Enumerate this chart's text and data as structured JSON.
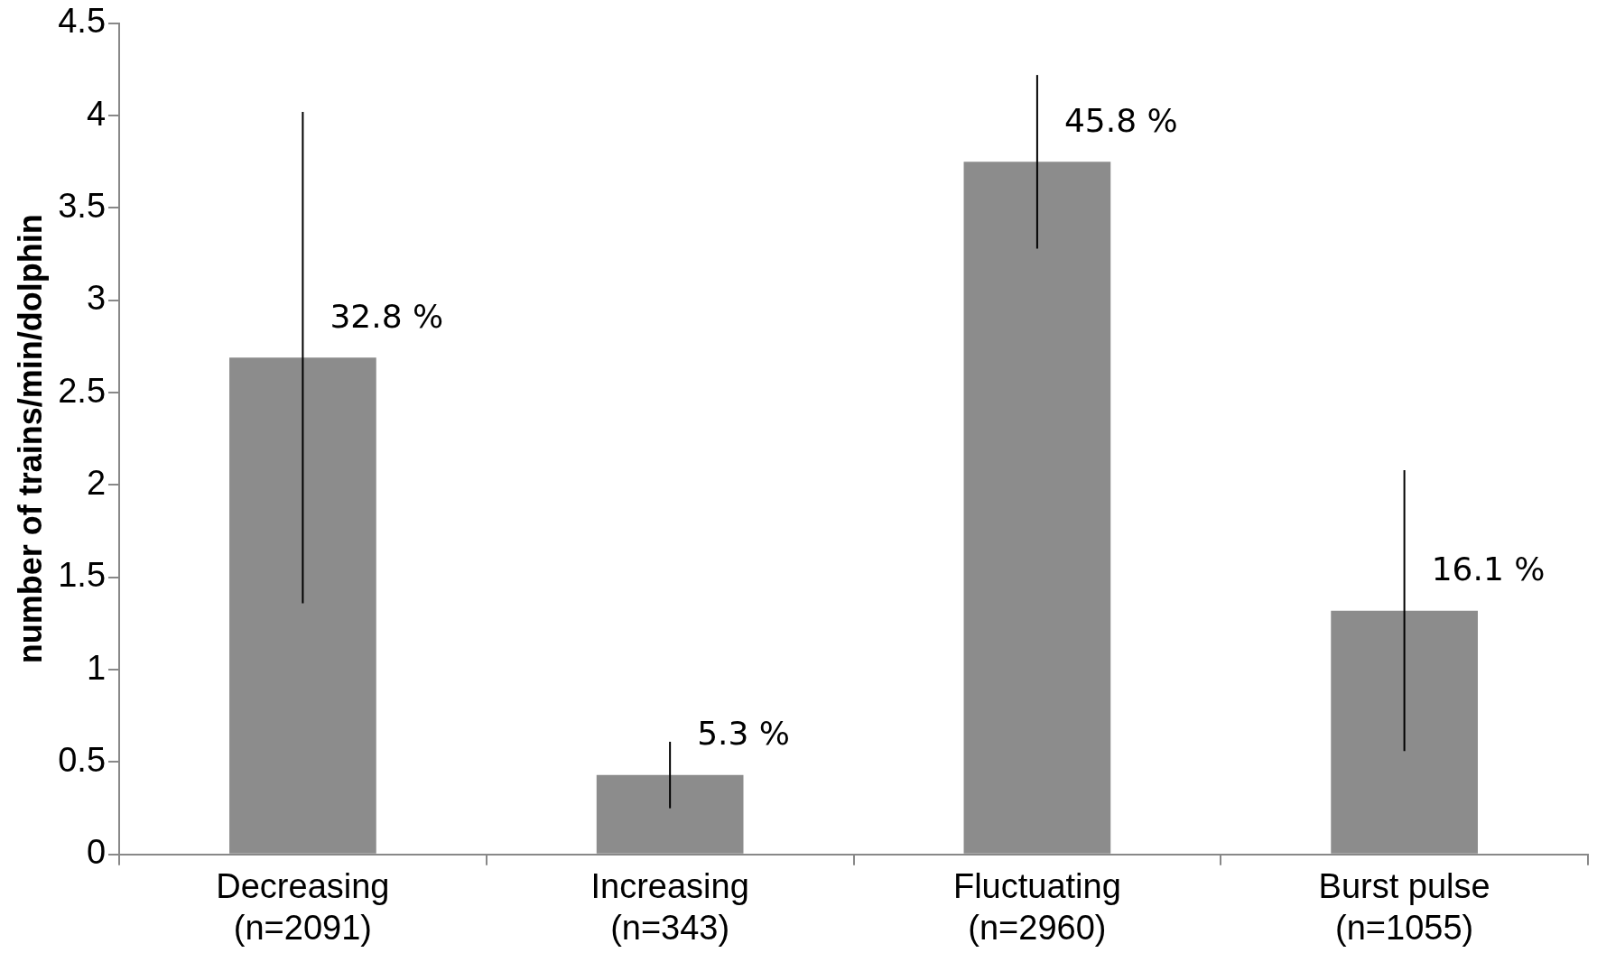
{
  "chart_data": {
    "type": "bar",
    "ylabel": "number of trains/min/dolphin",
    "categories": [
      "Decreasing\n(n=2091)",
      "Increasing\n(n=343)",
      "Fluctuating\n(n=2960)",
      "Burst pulse\n(n=1055)"
    ],
    "values": [
      2.69,
      0.43,
      3.75,
      1.32
    ],
    "errors": [
      1.33,
      0.18,
      0.47,
      0.76
    ],
    "color": "#8c8c8c",
    "ylim": [
      0,
      4.5
    ],
    "yticks": [
      0,
      0.5,
      1,
      1.5,
      2,
      2.5,
      3,
      3.5,
      4,
      4.5
    ],
    "grid": false,
    "legend": false,
    "annotations": [
      {
        "text": "32.8 %",
        "x": "Decreasing\n(n=2091)",
        "y": 2.69
      },
      {
        "text": "5.3 %",
        "x": "Increasing\n(n=343)",
        "y": 0.43
      },
      {
        "text": "45.8 %",
        "x": "Fluctuating\n(n=2960)",
        "y": 3.75
      },
      {
        "text": "16.1 %",
        "x": "Burst pulse\n(n=1055)",
        "y": 1.32
      }
    ]
  }
}
